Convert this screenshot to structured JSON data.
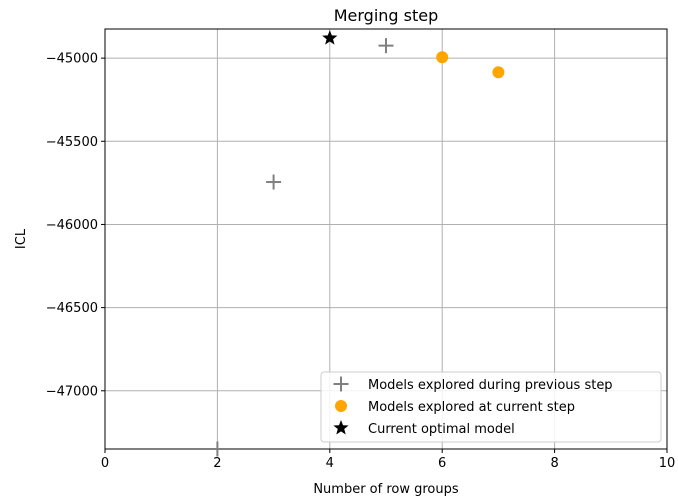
{
  "chart_data": {
    "type": "scatter",
    "title": "Merging step",
    "xlabel": "Number of row groups",
    "ylabel": "ICL",
    "xlim": [
      0,
      10
    ],
    "ylim": [
      -47350,
      -44825
    ],
    "xticks": [
      0,
      2,
      4,
      6,
      8,
      10
    ],
    "yticks": [
      -45000,
      -45500,
      -46000,
      -46500,
      -47000
    ],
    "xtick_labels": [
      "0",
      "2",
      "4",
      "6",
      "8",
      "10"
    ],
    "ytick_labels": [
      "−45000",
      "−45500",
      "−46000",
      "−46500",
      "−47000"
    ],
    "grid": true,
    "legend_position": "lower-right",
    "series": [
      {
        "name": "Models explored during previous step",
        "marker": "plus",
        "color": "#808080",
        "points": [
          {
            "x": 2,
            "y": -47350
          },
          {
            "x": 3,
            "y": -45745
          },
          {
            "x": 5,
            "y": -44925
          }
        ]
      },
      {
        "name": "Models explored at current step",
        "marker": "circle",
        "color": "#ffa500",
        "points": [
          {
            "x": 6,
            "y": -44995
          },
          {
            "x": 7,
            "y": -45085
          }
        ]
      },
      {
        "name": "Current optimal model",
        "marker": "star",
        "color": "#000000",
        "points": [
          {
            "x": 4,
            "y": -44880
          }
        ]
      }
    ]
  }
}
